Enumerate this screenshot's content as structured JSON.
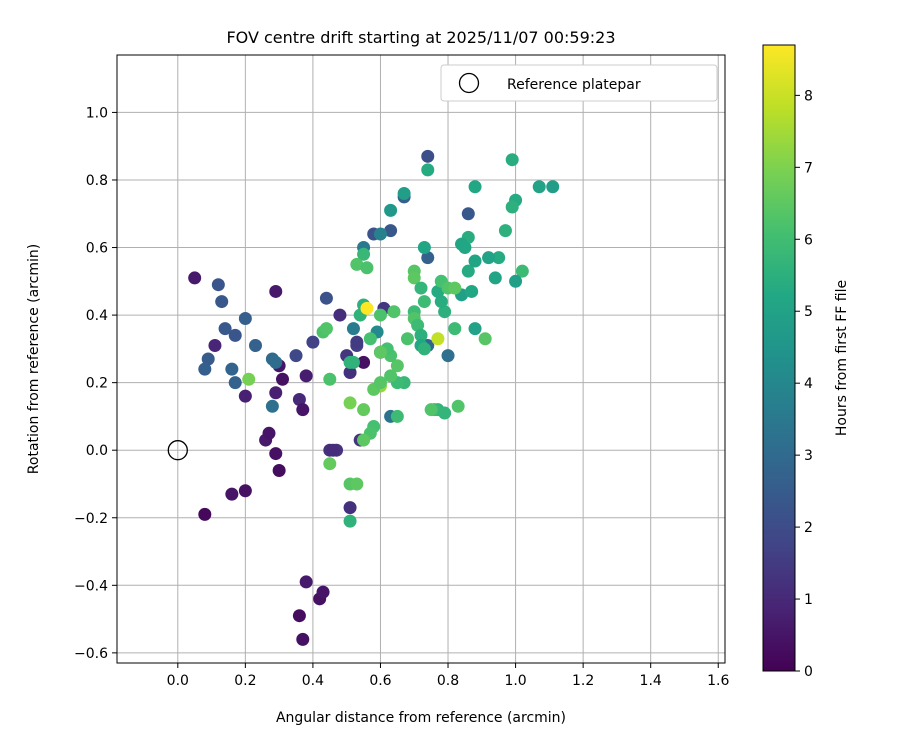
{
  "chart_data": {
    "type": "scatter",
    "title": "FOV centre drift starting at 2025/11/07 00:59:23",
    "xlabel": "Angular distance from reference (arcmin)",
    "ylabel": "Rotation from reference (arcmin)",
    "xlim": [
      -0.18,
      1.62
    ],
    "ylim": [
      -0.63,
      1.17
    ],
    "xticks": [
      0.0,
      0.2,
      0.4,
      0.6,
      0.8,
      1.0,
      1.2,
      1.4,
      1.6
    ],
    "yticks": [
      -0.6,
      -0.4,
      -0.2,
      0.0,
      0.2,
      0.4,
      0.6,
      0.8,
      1.0
    ],
    "grid": true,
    "legend": {
      "placement": "top-right",
      "entries": [
        "Reference platepar"
      ]
    },
    "reference_point": {
      "name": "Reference platepar",
      "x": 0.0,
      "y": 0.0
    },
    "colorbar": {
      "label": "Hours from first FF file",
      "colormap": "viridis",
      "range": [
        0,
        8.7
      ],
      "ticks": [
        0,
        1,
        2,
        3,
        4,
        5,
        6,
        7,
        8
      ]
    },
    "series": [
      {
        "points": [
          [
            0.05,
            0.51,
            0.6
          ],
          [
            0.29,
            0.47,
            0.6
          ],
          [
            0.08,
            -0.19,
            0.2
          ],
          [
            0.11,
            0.31,
            0.9
          ],
          [
            0.16,
            -0.13,
            0.5
          ],
          [
            0.2,
            -0.12,
            0.4
          ],
          [
            0.2,
            0.16,
            0.8
          ],
          [
            0.26,
            0.03,
            0.6
          ],
          [
            0.27,
            0.05,
            0.5
          ],
          [
            0.29,
            -0.01,
            0.4
          ],
          [
            0.3,
            -0.06,
            0.3
          ],
          [
            0.29,
            0.17,
            0.8
          ],
          [
            0.31,
            0.21,
            0.4
          ],
          [
            0.3,
            0.25,
            0.5
          ],
          [
            0.36,
            0.15,
            1.0
          ],
          [
            0.37,
            0.12,
            0.5
          ],
          [
            0.38,
            0.22,
            0.7
          ],
          [
            0.38,
            -0.39,
            0.6
          ],
          [
            0.36,
            -0.49,
            0.3
          ],
          [
            0.37,
            -0.56,
            0.4
          ],
          [
            0.42,
            -0.44,
            0.4
          ],
          [
            0.43,
            -0.42,
            0.5
          ],
          [
            0.45,
            0.0,
            1.2
          ],
          [
            0.47,
            0.0,
            1.3
          ],
          [
            0.46,
            0.0,
            1.1
          ],
          [
            0.51,
            -0.17,
            1.2
          ],
          [
            0.54,
            0.03,
            1.3
          ],
          [
            0.55,
            0.26,
            0.4
          ],
          [
            0.5,
            0.28,
            1.4
          ],
          [
            0.51,
            0.23,
            1.2
          ],
          [
            0.48,
            0.4,
            1.1
          ],
          [
            0.53,
            0.31,
            1.6
          ],
          [
            0.53,
            0.32,
            1.5
          ],
          [
            0.61,
            0.42,
            1.4
          ],
          [
            0.6,
            0.29,
            1.7
          ],
          [
            0.4,
            0.32,
            1.7
          ],
          [
            0.35,
            0.28,
            1.9
          ],
          [
            0.14,
            0.36,
            2.4
          ],
          [
            0.17,
            0.34,
            2.3
          ],
          [
            0.09,
            0.27,
            2.5
          ],
          [
            0.08,
            0.24,
            2.6
          ],
          [
            0.12,
            0.49,
            2.3
          ],
          [
            0.13,
            0.44,
            2.4
          ],
          [
            0.2,
            0.39,
            2.6
          ],
          [
            0.23,
            0.31,
            2.7
          ],
          [
            0.16,
            0.24,
            2.8
          ],
          [
            0.17,
            0.2,
            2.7
          ],
          [
            0.28,
            0.27,
            3.0
          ],
          [
            0.29,
            0.26,
            3.1
          ],
          [
            0.28,
            0.13,
            3.2
          ],
          [
            0.44,
            0.45,
            2.2
          ],
          [
            0.58,
            0.64,
            2.2
          ],
          [
            0.63,
            0.65,
            2.4
          ],
          [
            0.67,
            0.75,
            2.6
          ],
          [
            0.74,
            0.87,
            2.1
          ],
          [
            0.86,
            0.7,
            2.4
          ],
          [
            0.74,
            0.57,
            2.7
          ],
          [
            0.74,
            0.31,
            2.8
          ],
          [
            0.8,
            0.28,
            3.2
          ],
          [
            0.63,
            0.1,
            3.3
          ],
          [
            0.52,
            0.36,
            3.6
          ],
          [
            0.55,
            0.6,
            3.5
          ],
          [
            0.6,
            0.64,
            3.8
          ],
          [
            0.59,
            0.35,
            4.1
          ],
          [
            0.63,
            0.71,
            4.6
          ],
          [
            0.67,
            0.76,
            4.8
          ],
          [
            0.73,
            0.6,
            5.1
          ],
          [
            0.74,
            0.83,
            5.3
          ],
          [
            0.99,
            0.86,
            5.4
          ],
          [
            1.07,
            0.78,
            5.0
          ],
          [
            1.11,
            0.78,
            4.8
          ],
          [
            1.0,
            0.74,
            5.3
          ],
          [
            0.99,
            0.72,
            5.5
          ],
          [
            1.02,
            0.53,
            5.9
          ],
          [
            1.0,
            0.5,
            4.9
          ],
          [
            0.97,
            0.65,
            5.5
          ],
          [
            0.95,
            0.57,
            5.3
          ],
          [
            0.92,
            0.57,
            5.0
          ],
          [
            0.94,
            0.51,
            5.1
          ],
          [
            0.88,
            0.78,
            5.2
          ],
          [
            0.86,
            0.63,
            5.4
          ],
          [
            0.84,
            0.61,
            5.1
          ],
          [
            0.85,
            0.6,
            5.2
          ],
          [
            0.86,
            0.53,
            5.3
          ],
          [
            0.88,
            0.56,
            5.1
          ],
          [
            0.84,
            0.46,
            4.9
          ],
          [
            0.87,
            0.47,
            5.2
          ],
          [
            0.88,
            0.36,
            5.0
          ],
          [
            0.91,
            0.33,
            6.4
          ],
          [
            0.82,
            0.36,
            5.9
          ],
          [
            0.79,
            0.41,
            5.5
          ],
          [
            0.78,
            0.44,
            5.4
          ],
          [
            0.77,
            0.47,
            5.3
          ],
          [
            0.78,
            0.5,
            6.1
          ],
          [
            0.8,
            0.48,
            6.3
          ],
          [
            0.82,
            0.48,
            6.5
          ],
          [
            0.7,
            0.53,
            6.4
          ],
          [
            0.7,
            0.51,
            6.5
          ],
          [
            0.72,
            0.48,
            5.7
          ],
          [
            0.73,
            0.44,
            5.9
          ],
          [
            0.7,
            0.41,
            5.9
          ],
          [
            0.7,
            0.39,
            6.3
          ],
          [
            0.71,
            0.37,
            5.9
          ],
          [
            0.72,
            0.34,
            5.5
          ],
          [
            0.72,
            0.31,
            5.2
          ],
          [
            0.68,
            0.33,
            6.2
          ],
          [
            0.73,
            0.3,
            5.6
          ],
          [
            0.77,
            0.12,
            5.6
          ],
          [
            0.76,
            0.12,
            5.8
          ],
          [
            0.79,
            0.11,
            5.7
          ],
          [
            0.83,
            0.13,
            6.3
          ],
          [
            0.75,
            0.12,
            6.3
          ],
          [
            0.67,
            0.2,
            5.8
          ],
          [
            0.65,
            0.2,
            5.9
          ],
          [
            0.65,
            0.25,
            6.4
          ],
          [
            0.63,
            0.28,
            6.2
          ],
          [
            0.62,
            0.3,
            6.1
          ],
          [
            0.6,
            0.29,
            6.5
          ],
          [
            0.6,
            0.19,
            7.3
          ],
          [
            0.58,
            0.18,
            6.5
          ],
          [
            0.58,
            0.07,
            6.1
          ],
          [
            0.57,
            0.05,
            6.2
          ],
          [
            0.55,
            0.03,
            6.5
          ],
          [
            0.55,
            0.12,
            6.6
          ],
          [
            0.51,
            0.14,
            6.9
          ],
          [
            0.51,
            -0.1,
            6.4
          ],
          [
            0.53,
            -0.1,
            6.5
          ],
          [
            0.51,
            -0.21,
            5.6
          ],
          [
            0.45,
            -0.04,
            6.6
          ],
          [
            0.45,
            0.21,
            6.2
          ],
          [
            0.51,
            0.26,
            5.6
          ],
          [
            0.52,
            0.26,
            5.6
          ],
          [
            0.57,
            0.33,
            6.1
          ],
          [
            0.6,
            0.4,
            6.2
          ],
          [
            0.64,
            0.41,
            6.3
          ],
          [
            0.43,
            0.35,
            6.2
          ],
          [
            0.44,
            0.36,
            6.3
          ],
          [
            0.55,
            0.58,
            5.8
          ],
          [
            0.53,
            0.55,
            6.3
          ],
          [
            0.56,
            0.54,
            6.2
          ],
          [
            0.54,
            0.4,
            5.6
          ],
          [
            0.55,
            0.43,
            5.5
          ],
          [
            0.77,
            0.33,
            7.9
          ],
          [
            0.56,
            0.42,
            8.7
          ],
          [
            0.21,
            0.21,
            6.9
          ],
          [
            0.6,
            0.2,
            6.4
          ],
          [
            0.63,
            0.22,
            6.3
          ],
          [
            0.65,
            0.1,
            5.9
          ]
        ]
      }
    ]
  }
}
